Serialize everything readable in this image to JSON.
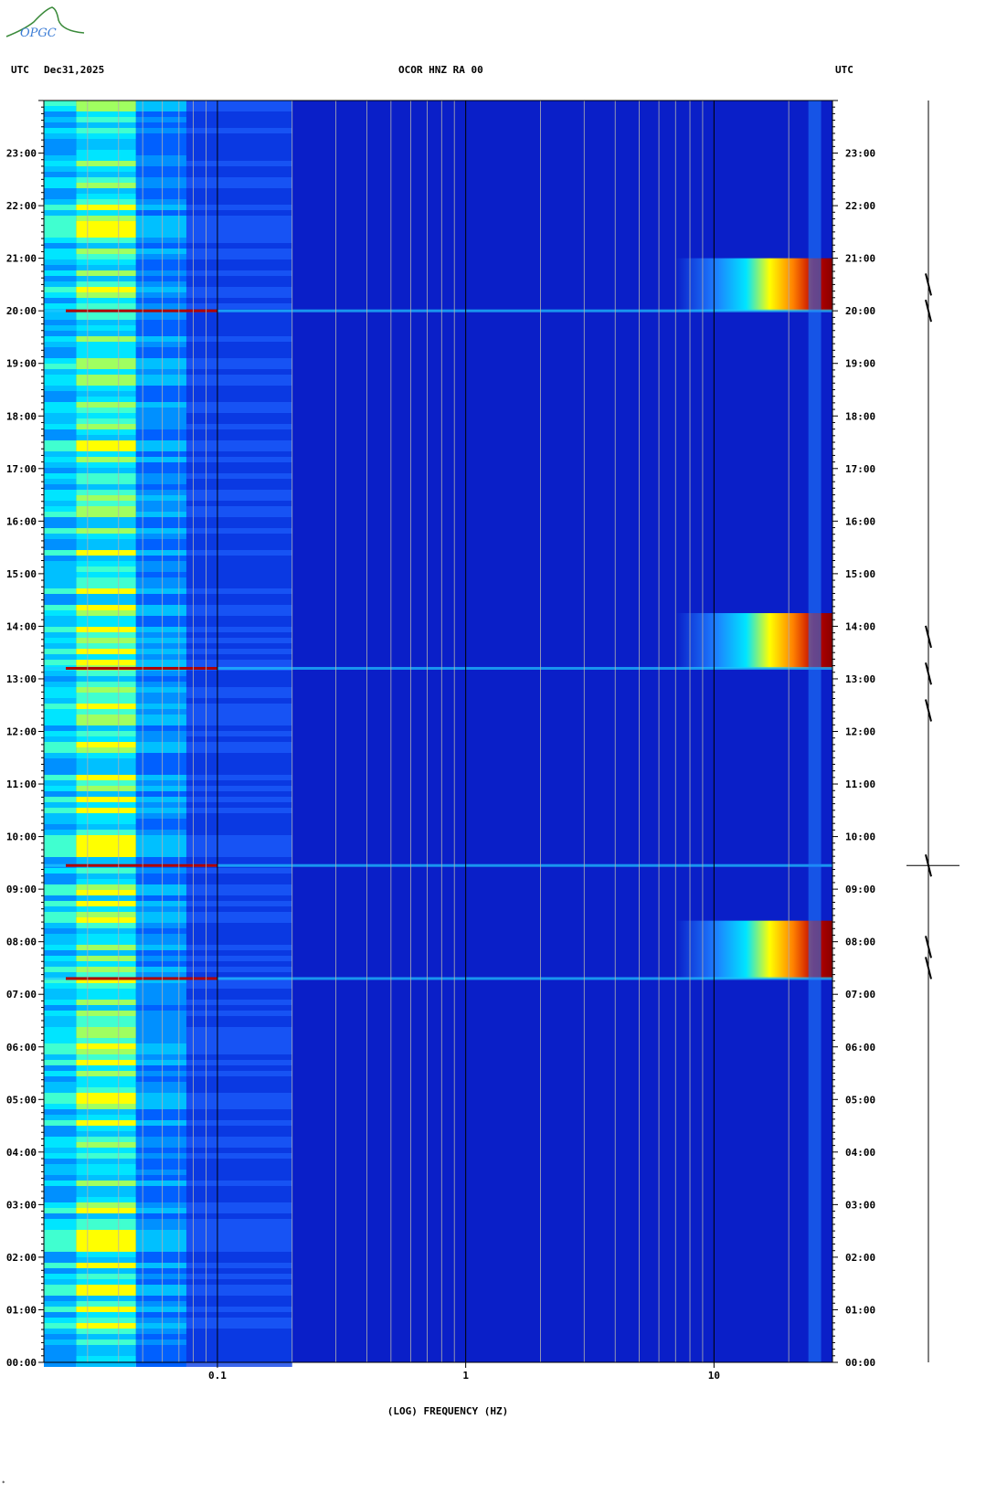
{
  "logo": {
    "text": "OPGC",
    "color": "#3a8a3a"
  },
  "header": {
    "left_utc": "UTC",
    "date": "Dec31,2025",
    "center": "OCOR HNZ RA 00",
    "right_utc": "UTC"
  },
  "footnote": "*",
  "chart_data": {
    "type": "heatmap",
    "title": "OCOR HNZ RA 00",
    "xlabel": "(LOG) FREQUENCY (HZ)",
    "ylabel": "UTC",
    "x_scale": "log",
    "xlim": [
      0.02,
      30
    ],
    "x_ticks": [
      {
        "value": 0.1,
        "label": "0.1"
      },
      {
        "value": 1,
        "label": "1"
      },
      {
        "value": 10,
        "label": "10"
      }
    ],
    "y_ticks": [
      "00:00",
      "01:00",
      "02:00",
      "03:00",
      "04:00",
      "05:00",
      "06:00",
      "07:00",
      "08:00",
      "09:00",
      "10:00",
      "11:00",
      "12:00",
      "13:00",
      "14:00",
      "15:00",
      "16:00",
      "17:00",
      "18:00",
      "19:00",
      "20:00",
      "21:00",
      "22:00",
      "23:00"
    ],
    "ylim_hours": [
      0,
      24
    ],
    "colormap": [
      "#00008b",
      "#0000ff",
      "#0080ff",
      "#00e5ff",
      "#ffff00",
      "#ff8000",
      "#a00000"
    ],
    "background_color": "#0a1fc8",
    "high_energy_events": [
      {
        "start_hour": 20.0,
        "end_hour": 21.0,
        "min_freq": 7
      },
      {
        "start_hour": 13.2,
        "end_hour": 14.25,
        "min_freq": 7
      },
      {
        "start_hour": 7.3,
        "end_hour": 8.4,
        "min_freq": 7
      }
    ],
    "broadband_lines_hours": [
      20.0,
      13.2,
      7.3,
      9.45
    ],
    "seismogram_events_hours": [
      20.0,
      20.5,
      13.1,
      13.8,
      12.4,
      9.45,
      7.5,
      7.9
    ]
  }
}
